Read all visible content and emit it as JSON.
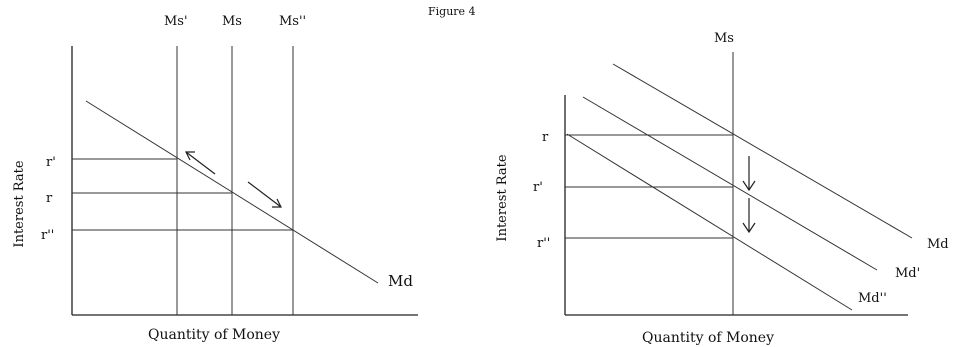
{
  "figure_title": "Figure 4",
  "left_panel": {
    "supply_labels": [
      "Ms'",
      "Ms",
      "Ms''"
    ],
    "rate_labels": [
      "r'",
      "r",
      "r''"
    ],
    "demand_label": "Md",
    "ylabel": "Interest Rate",
    "xlabel": "Quantity of Money"
  },
  "right_panel": {
    "supply_label": "Ms",
    "rate_labels": [
      "r",
      "r'",
      "r''"
    ],
    "demand_labels": [
      "Md",
      "Md'",
      "Md''"
    ],
    "ylabel": "Interest Rate",
    "xlabel": "Quantity of Money"
  }
}
